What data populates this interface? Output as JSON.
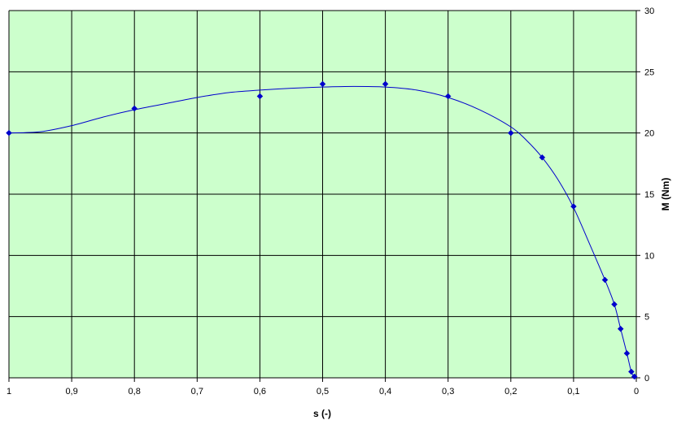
{
  "chart_data": {
    "type": "scatter",
    "title": "",
    "xlabel": "s (-)",
    "ylabel": "M (Nm)",
    "xlim": [
      1,
      0
    ],
    "x_reversed": true,
    "ylim": [
      0,
      30
    ],
    "grid": true,
    "legend": "none",
    "y_axis_side": "right",
    "x_ticks": [
      1,
      0.9,
      0.8,
      0.7,
      0.6,
      0.5,
      0.4,
      0.3,
      0.2,
      0.1,
      0
    ],
    "x_tick_labels": [
      "1",
      "0,9",
      "0,8",
      "0,7",
      "0,6",
      "0,5",
      "0,4",
      "0,3",
      "0,2",
      "0,1",
      "0"
    ],
    "y_ticks": [
      0,
      5,
      10,
      15,
      20,
      25,
      30
    ],
    "y_tick_labels": [
      "0",
      "5",
      "10",
      "15",
      "20",
      "25",
      "30"
    ],
    "series": [
      {
        "x": [
          1.0,
          0.8,
          0.6,
          0.5,
          0.4,
          0.3,
          0.2,
          0.15,
          0.1,
          0.05,
          0.035,
          0.025,
          0.015,
          0.008,
          0.003
        ],
        "y": [
          20,
          22,
          23,
          24,
          24,
          23,
          20,
          18,
          14,
          8,
          6,
          4,
          2,
          0.5,
          0.1
        ]
      }
    ],
    "trendline": {
      "x": [
        1.0,
        0.95,
        0.9,
        0.85,
        0.8,
        0.75,
        0.7,
        0.65,
        0.6,
        0.55,
        0.5,
        0.45,
        0.4,
        0.35,
        0.3,
        0.25,
        0.2,
        0.175,
        0.15,
        0.125,
        0.1,
        0.075,
        0.05,
        0.035,
        0.025,
        0.015,
        0.008,
        0.003
      ],
      "y": [
        20.0,
        20.1,
        20.6,
        21.3,
        21.9,
        22.4,
        22.9,
        23.3,
        23.5,
        23.65,
        23.75,
        23.8,
        23.75,
        23.5,
        22.9,
        21.9,
        20.5,
        19.4,
        18.0,
        16.2,
        13.9,
        11.0,
        8.0,
        6.0,
        4.0,
        2.0,
        0.5,
        0.1
      ]
    },
    "colors": {
      "plot_background": "#ccffcc",
      "grid": "#000000",
      "series": "#0000cc"
    }
  }
}
